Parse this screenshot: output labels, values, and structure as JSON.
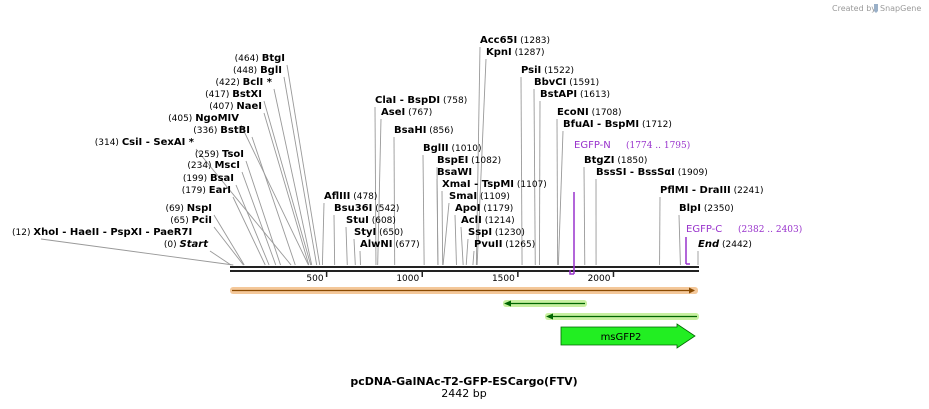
{
  "credit": {
    "text": "Created by",
    "brand": "SnapGene"
  },
  "plasmid": {
    "name": "pcDNA-GalNAc-T2-GFP-ESCargo(FTV)",
    "length_label": "2442 bp",
    "length": 2442
  },
  "ticks": [
    {
      "pos": 500,
      "label": "500"
    },
    {
      "pos": 1000,
      "label": "1000"
    },
    {
      "pos": 1500,
      "label": "1500"
    },
    {
      "pos": 2000,
      "label": "2000"
    }
  ],
  "sites": [
    {
      "name": "Start",
      "pos": "(0)",
      "bp": 0,
      "italic": true
    },
    {
      "name": "XhoI",
      "pos": "(12)",
      "bp": 12,
      "extra": [
        "HaeII",
        "PspXI",
        "PaeR7I"
      ]
    },
    {
      "name": "PciI",
      "pos": "(65)",
      "bp": 65
    },
    {
      "name": "NspI",
      "pos": "(69)",
      "bp": 69
    },
    {
      "name": "EarI",
      "pos": "(179)",
      "bp": 179
    },
    {
      "name": "BsaI",
      "pos": "(199)",
      "bp": 199
    },
    {
      "name": "MscI",
      "pos": "(234)",
      "bp": 234
    },
    {
      "name": "TsoI",
      "pos": "(259)",
      "bp": 259
    },
    {
      "name": "CsiI",
      "pos": "(314)",
      "bp": 314,
      "extra": [
        "SexAI *"
      ]
    },
    {
      "name": "BstBI",
      "pos": "(336)",
      "bp": 336
    },
    {
      "name": "NgoMIV",
      "pos": "(405)",
      "bp": 405
    },
    {
      "name": "NaeI",
      "pos": "(407)",
      "bp": 407
    },
    {
      "name": "BstXI",
      "pos": "(417)",
      "bp": 417
    },
    {
      "name": "BclI *",
      "pos": "(422)",
      "bp": 422
    },
    {
      "name": "BglI",
      "pos": "(448)",
      "bp": 448
    },
    {
      "name": "BtgI",
      "pos": "(464)",
      "bp": 464
    },
    {
      "name": "AflIII",
      "pos": "(478)",
      "bp": 478,
      "pos_right": true
    },
    {
      "name": "Bsu36I",
      "pos": "(542)",
      "bp": 542,
      "pos_right": true
    },
    {
      "name": "StuI",
      "pos": "(608)",
      "bp": 608,
      "pos_right": true
    },
    {
      "name": "StyI",
      "pos": "(650)",
      "bp": 650,
      "pos_right": true
    },
    {
      "name": "AlwNI",
      "pos": "(677)",
      "bp": 677,
      "pos_right": true
    },
    {
      "name": "ClaI",
      "pos": "(758)",
      "bp": 758,
      "pos_right": true,
      "extra": [
        "BspDI"
      ]
    },
    {
      "name": "AseI",
      "pos": "(767)",
      "bp": 767,
      "pos_right": true
    },
    {
      "name": "BsaHI",
      "pos": "(856)",
      "bp": 856,
      "pos_right": true
    },
    {
      "name": "BglII",
      "pos": "(1010)",
      "bp": 1010,
      "pos_right": true
    },
    {
      "name": "BspEI",
      "pos": "(1082)",
      "bp": 1082,
      "pos_right": true
    },
    {
      "name": "BsaWI",
      "pos": "",
      "bp": 1082,
      "pos_right": true
    },
    {
      "name": "XmaI",
      "pos": "(1107)",
      "bp": 1107,
      "pos_right": true,
      "extra": [
        "TspMI"
      ]
    },
    {
      "name": "SmaI",
      "pos": "(1109)",
      "bp": 1109,
      "pos_right": true
    },
    {
      "name": "ApoI",
      "pos": "(1179)",
      "bp": 1179,
      "pos_right": true
    },
    {
      "name": "AclI",
      "pos": "(1214)",
      "bp": 1214,
      "pos_right": true
    },
    {
      "name": "SspI",
      "pos": "(1230)",
      "bp": 1230,
      "pos_right": true
    },
    {
      "name": "PvuII",
      "pos": "(1265)",
      "bp": 1265,
      "pos_right": true
    },
    {
      "name": "Acc65I",
      "pos": "(1283)",
      "bp": 1283,
      "pos_right": true
    },
    {
      "name": "KpnI",
      "pos": "(1287)",
      "bp": 1287,
      "pos_right": true
    },
    {
      "name": "PsiI",
      "pos": "(1522)",
      "bp": 1522,
      "pos_right": true
    },
    {
      "name": "BbvCI",
      "pos": "(1591)",
      "bp": 1591,
      "pos_right": true
    },
    {
      "name": "BstAPI",
      "pos": "(1613)",
      "bp": 1613,
      "pos_right": true
    },
    {
      "name": "EcoNI",
      "pos": "(1708)",
      "bp": 1708,
      "pos_right": true
    },
    {
      "name": "BfuAI",
      "pos": "(1712)",
      "bp": 1712,
      "pos_right": true,
      "extra": [
        "BspMI"
      ]
    },
    {
      "name": "BtgZI",
      "pos": "(1850)",
      "bp": 1850,
      "pos_right": true
    },
    {
      "name": "BssSI",
      "pos": "(1909)",
      "bp": 1909,
      "pos_right": true,
      "extra": [
        "BssSαI"
      ]
    },
    {
      "name": "PflMI",
      "pos": "(2241)",
      "bp": 2241,
      "pos_right": true,
      "extra": [
        "DraIII"
      ]
    },
    {
      "name": "BlpI",
      "pos": "(2350)",
      "bp": 2350,
      "pos_right": true
    },
    {
      "name": "End",
      "pos": "(2442)",
      "bp": 2442,
      "pos_right": true,
      "italic": true
    }
  ],
  "primers": [
    {
      "name": "EGFP-N",
      "range": "(1774 .. 1795)",
      "bp": 1774,
      "color": "#9933cc"
    },
    {
      "name": "EGFP-C",
      "range": "(2382 .. 2403)",
      "bp": 2382,
      "color": "#9933cc"
    }
  ],
  "features": [
    {
      "name": "msGFP2",
      "color": "#22ee22"
    }
  ],
  "colors": {
    "backbone": "#222222",
    "orf_fill": "#f4c89a",
    "orf_arrow": "#8a4a00",
    "orf_green": "#006600",
    "feature": "#22ee22"
  }
}
